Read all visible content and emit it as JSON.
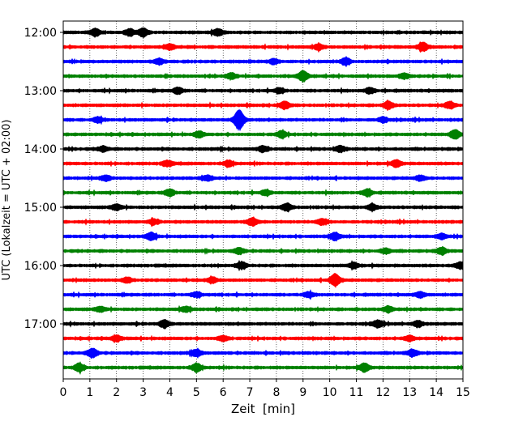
{
  "chart_data": {
    "type": "line",
    "xlabel": "Zeit  [min]",
    "ylabel": "UTC (Lokalzeit = UTC + 02:00)",
    "xlim": [
      0,
      15
    ],
    "x_ticks": [
      0,
      1,
      2,
      3,
      4,
      5,
      6,
      7,
      8,
      9,
      10,
      11,
      12,
      13,
      14,
      15
    ],
    "y_ticks": [
      "12:00",
      "13:00",
      "14:00",
      "15:00",
      "16:00",
      "17:00"
    ],
    "vertical_grid": true,
    "colors": [
      "#000000",
      "#ff0000",
      "#0000ff",
      "#008000"
    ],
    "traces": [
      {
        "start": "12:00",
        "color": "#000000",
        "events": [
          {
            "t": 1.2,
            "a": 0.9
          },
          {
            "t": 2.5,
            "a": 0.8
          },
          {
            "t": 3.0,
            "a": 1.0
          },
          {
            "t": 5.8,
            "a": 0.8
          }
        ]
      },
      {
        "start": "12:15",
        "color": "#ff0000",
        "events": [
          {
            "t": 4.0,
            "a": 0.7
          },
          {
            "t": 9.6,
            "a": 0.6
          },
          {
            "t": 13.5,
            "a": 1.1
          }
        ]
      },
      {
        "start": "12:30",
        "color": "#0000ff",
        "events": [
          {
            "t": 3.6,
            "a": 0.7
          },
          {
            "t": 7.9,
            "a": 0.6
          },
          {
            "t": 10.6,
            "a": 0.8
          }
        ]
      },
      {
        "start": "12:45",
        "color": "#008000",
        "events": [
          {
            "t": 6.3,
            "a": 0.7
          },
          {
            "t": 9.0,
            "a": 1.3
          },
          {
            "t": 12.8,
            "a": 0.6
          }
        ]
      },
      {
        "start": "13:00",
        "color": "#000000",
        "events": [
          {
            "t": 4.3,
            "a": 0.7
          },
          {
            "t": 8.1,
            "a": 0.6
          },
          {
            "t": 11.5,
            "a": 0.7
          }
        ]
      },
      {
        "start": "13:15",
        "color": "#ff0000",
        "events": [
          {
            "t": 8.3,
            "a": 0.9
          },
          {
            "t": 12.2,
            "a": 0.9
          },
          {
            "t": 14.5,
            "a": 0.8
          }
        ]
      },
      {
        "start": "13:30",
        "color": "#0000ff",
        "events": [
          {
            "t": 1.3,
            "a": 0.6
          },
          {
            "t": 6.6,
            "a": 2.6
          },
          {
            "t": 12.0,
            "a": 0.6
          }
        ]
      },
      {
        "start": "13:45",
        "color": "#008000",
        "events": [
          {
            "t": 5.1,
            "a": 0.7
          },
          {
            "t": 8.2,
            "a": 0.8
          },
          {
            "t": 14.7,
            "a": 1.1
          }
        ]
      },
      {
        "start": "14:00",
        "color": "#000000",
        "events": [
          {
            "t": 1.5,
            "a": 0.6
          },
          {
            "t": 7.5,
            "a": 0.7
          },
          {
            "t": 10.4,
            "a": 0.7
          }
        ]
      },
      {
        "start": "14:15",
        "color": "#ff0000",
        "events": [
          {
            "t": 3.9,
            "a": 0.7
          },
          {
            "t": 6.2,
            "a": 0.7
          },
          {
            "t": 12.5,
            "a": 0.8
          }
        ]
      },
      {
        "start": "14:30",
        "color": "#0000ff",
        "events": [
          {
            "t": 1.6,
            "a": 0.6
          },
          {
            "t": 5.4,
            "a": 0.6
          },
          {
            "t": 13.4,
            "a": 0.6
          }
        ]
      },
      {
        "start": "14:45",
        "color": "#008000",
        "events": [
          {
            "t": 4.0,
            "a": 0.8
          },
          {
            "t": 7.6,
            "a": 0.6
          },
          {
            "t": 11.4,
            "a": 0.8
          }
        ]
      },
      {
        "start": "15:00",
        "color": "#000000",
        "events": [
          {
            "t": 2.0,
            "a": 0.7
          },
          {
            "t": 8.4,
            "a": 0.9
          },
          {
            "t": 11.6,
            "a": 0.7
          }
        ]
      },
      {
        "start": "15:15",
        "color": "#ff0000",
        "events": [
          {
            "t": 3.4,
            "a": 0.6
          },
          {
            "t": 7.1,
            "a": 0.9
          },
          {
            "t": 9.7,
            "a": 0.7
          }
        ]
      },
      {
        "start": "15:30",
        "color": "#0000ff",
        "events": [
          {
            "t": 3.3,
            "a": 0.9
          },
          {
            "t": 10.2,
            "a": 0.9
          },
          {
            "t": 14.2,
            "a": 0.6
          }
        ]
      },
      {
        "start": "15:45",
        "color": "#008000",
        "events": [
          {
            "t": 6.6,
            "a": 0.7
          },
          {
            "t": 12.1,
            "a": 0.6
          },
          {
            "t": 14.2,
            "a": 0.8
          }
        ]
      },
      {
        "start": "16:00",
        "color": "#000000",
        "events": [
          {
            "t": 6.7,
            "a": 0.8
          },
          {
            "t": 10.9,
            "a": 0.7
          },
          {
            "t": 14.9,
            "a": 0.8
          }
        ]
      },
      {
        "start": "16:15",
        "color": "#ff0000",
        "events": [
          {
            "t": 2.4,
            "a": 0.6
          },
          {
            "t": 5.6,
            "a": 0.7
          },
          {
            "t": 10.2,
            "a": 1.6
          }
        ]
      },
      {
        "start": "16:30",
        "color": "#0000ff",
        "events": [
          {
            "t": 5.0,
            "a": 0.6
          },
          {
            "t": 9.2,
            "a": 0.6
          },
          {
            "t": 13.4,
            "a": 0.6
          }
        ]
      },
      {
        "start": "16:45",
        "color": "#008000",
        "events": [
          {
            "t": 1.4,
            "a": 0.6
          },
          {
            "t": 4.6,
            "a": 0.6
          },
          {
            "t": 12.2,
            "a": 0.7
          }
        ]
      },
      {
        "start": "17:00",
        "color": "#000000",
        "events": [
          {
            "t": 3.8,
            "a": 0.9
          },
          {
            "t": 11.8,
            "a": 0.8
          },
          {
            "t": 13.3,
            "a": 0.7
          }
        ]
      },
      {
        "start": "17:15",
        "color": "#ff0000",
        "events": [
          {
            "t": 2.0,
            "a": 0.7
          },
          {
            "t": 6.0,
            "a": 0.6
          },
          {
            "t": 13.0,
            "a": 0.6
          }
        ]
      },
      {
        "start": "17:30",
        "color": "#0000ff",
        "events": [
          {
            "t": 1.1,
            "a": 1.1
          },
          {
            "t": 5.0,
            "a": 0.8
          },
          {
            "t": 13.1,
            "a": 0.8
          }
        ]
      },
      {
        "start": "17:45",
        "color": "#008000",
        "events": [
          {
            "t": 0.6,
            "a": 1.0
          },
          {
            "t": 5.0,
            "a": 1.0
          },
          {
            "t": 11.3,
            "a": 1.0
          }
        ]
      }
    ]
  }
}
